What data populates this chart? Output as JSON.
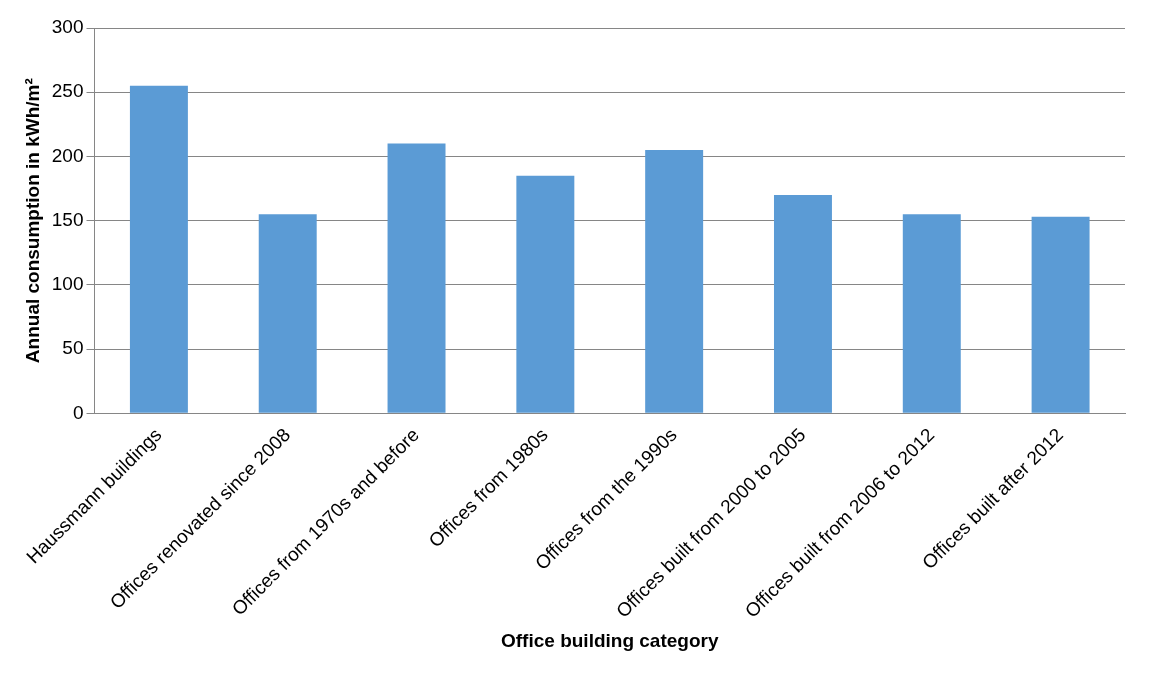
{
  "chart_data": {
    "type": "bar",
    "xlabel": "Office building category",
    "ylabel": "Annual consumption in kWh/m²",
    "categories": [
      "Haussmann buildings",
      "Offices renovated since 2008",
      "Offices from 1970s and before",
      "Offices from 1980s",
      "Offices from the 1990s",
      "Offices built from 2000 to 2005",
      "Offices built from 2006 to 2012",
      "Offices built after 2012"
    ],
    "values": [
      255,
      155,
      210,
      185,
      205,
      170,
      155,
      153
    ],
    "color": "#5b9bd5",
    "ylim": [
      0,
      300
    ],
    "yticks": [
      0,
      50,
      100,
      150,
      200,
      250,
      300
    ],
    "grid": "y",
    "legend": false
  }
}
